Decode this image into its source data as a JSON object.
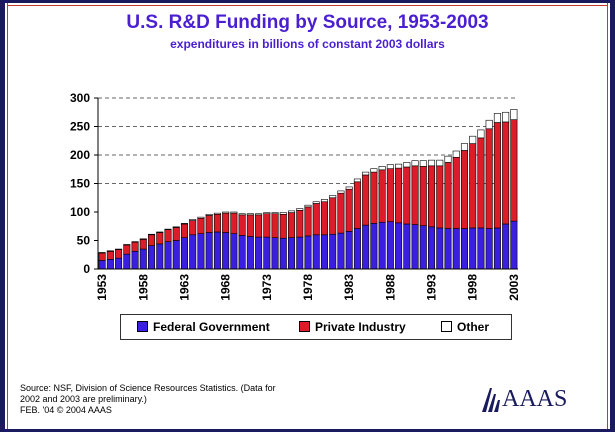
{
  "title": "U.S. R&D Funding by Source, 1953-2003",
  "subtitle": "expenditures in billions of constant 2003 dollars",
  "source_lines": [
    "Source: NSF, Division of Science Resources Statistics. (Data for",
    "2002 and 2003 are preliminary.)",
    "FEB. '04 © 2004 AAAS"
  ],
  "logo_text": "AAAS",
  "colors": {
    "federal": "#3a1fe0",
    "private": "#dd1c2a",
    "other": "#ffffff"
  },
  "chart_data": {
    "type": "bar",
    "stacked": true,
    "title": "U.S. R&D Funding by Source, 1953-2003",
    "subtitle": "expenditures in billions of constant 2003 dollars",
    "ylim": [
      0,
      300
    ],
    "yticks": [
      0,
      50,
      100,
      150,
      200,
      250,
      300
    ],
    "xtick_labels": [
      "1953",
      "1958",
      "1963",
      "1968",
      "1973",
      "1978",
      "1983",
      "1988",
      "1993",
      "1998",
      "2003"
    ],
    "grid": "horizontal dashed at 150, 200, 250, 300",
    "legend_position": "bottom",
    "categories": [
      1953,
      1954,
      1955,
      1956,
      1957,
      1958,
      1959,
      1960,
      1961,
      1962,
      1963,
      1964,
      1965,
      1966,
      1967,
      1968,
      1969,
      1970,
      1971,
      1972,
      1973,
      1974,
      1975,
      1976,
      1977,
      1978,
      1979,
      1980,
      1981,
      1982,
      1983,
      1984,
      1985,
      1986,
      1987,
      1988,
      1989,
      1990,
      1991,
      1992,
      1993,
      1994,
      1995,
      1996,
      1997,
      1998,
      1999,
      2000,
      2001,
      2002,
      2003
    ],
    "series": [
      {
        "name": "Federal Government",
        "values": [
          15,
          17,
          19,
          26,
          31,
          35,
          41,
          44,
          48,
          50,
          55,
          60,
          62,
          64,
          65,
          64,
          62,
          59,
          57,
          56,
          56,
          55,
          54,
          55,
          56,
          58,
          60,
          60,
          61,
          63,
          66,
          71,
          77,
          80,
          82,
          83,
          81,
          79,
          78,
          76,
          74,
          72,
          71,
          71,
          71,
          72,
          72,
          71,
          72,
          79,
          84
        ]
      },
      {
        "name": "Private Industry",
        "values": [
          13,
          14,
          15,
          16,
          16,
          17,
          19,
          20,
          21,
          23,
          24,
          25,
          27,
          30,
          31,
          34,
          36,
          36,
          38,
          39,
          41,
          42,
          42,
          44,
          47,
          51,
          55,
          58,
          64,
          70,
          74,
          82,
          88,
          90,
          92,
          93,
          96,
          100,
          103,
          104,
          107,
          109,
          116,
          125,
          137,
          148,
          158,
          175,
          185,
          179,
          178
        ]
      },
      {
        "name": "Other",
        "values": [
          1,
          1,
          1,
          1,
          1,
          1,
          1,
          1,
          1,
          1,
          1,
          2,
          2,
          2,
          2,
          2,
          2,
          2,
          2,
          2,
          2,
          2,
          3,
          3,
          3,
          3,
          3,
          4,
          4,
          4,
          4,
          5,
          5,
          6,
          6,
          7,
          7,
          8,
          9,
          10,
          10,
          10,
          11,
          11,
          12,
          13,
          14,
          15,
          16,
          17,
          18
        ]
      }
    ]
  }
}
